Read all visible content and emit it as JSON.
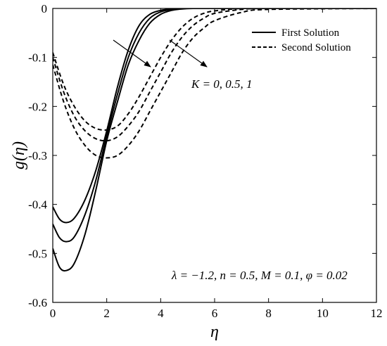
{
  "chart_data": {
    "type": "line",
    "xlabel": "η",
    "ylabel": "g(η)",
    "xlim": [
      0,
      12
    ],
    "ylim": [
      -0.6,
      0
    ],
    "xticks": [
      0,
      2,
      4,
      6,
      8,
      10,
      12
    ],
    "xtick_labels": [
      "0",
      "2",
      "4",
      "6",
      "8",
      "10",
      "12"
    ],
    "yticks": [
      0,
      -0.1,
      -0.2,
      -0.3,
      -0.4,
      -0.5,
      -0.6
    ],
    "ytick_labels": [
      "0",
      "-0.1",
      "-0.2",
      "-0.3",
      "-0.4",
      "-0.5",
      "-0.6"
    ],
    "grid": false,
    "legend_position": "top-right",
    "legend": [
      {
        "label": "First Solution",
        "style": "solid"
      },
      {
        "label": "Second Solution",
        "style": "dashed"
      }
    ],
    "annotations": {
      "param_label": "K = 0, 0.5, 1",
      "conditions": "λ = −1.2, n = 0.5, M = 0.1, φ = 0.02"
    },
    "series": [
      {
        "solution": "First Solution",
        "K": 0,
        "style": "solid",
        "x": [
          0,
          0.25,
          0.5,
          0.8,
          1.2,
          1.6,
          2.0,
          2.4,
          2.8,
          3.2,
          3.6,
          4.0,
          4.4,
          4.8,
          5.2,
          6,
          8,
          12
        ],
        "y": [
          -0.405,
          -0.43,
          -0.437,
          -0.428,
          -0.39,
          -0.33,
          -0.25,
          -0.16,
          -0.085,
          -0.035,
          -0.012,
          -0.004,
          -0.001,
          0,
          0,
          0,
          0,
          0
        ]
      },
      {
        "solution": "First Solution",
        "K": 0.5,
        "style": "solid",
        "x": [
          0,
          0.25,
          0.5,
          0.8,
          1.2,
          1.6,
          2.0,
          2.4,
          2.8,
          3.2,
          3.6,
          4.0,
          4.4,
          4.8,
          5.2,
          6,
          8,
          12
        ],
        "y": [
          -0.44,
          -0.468,
          -0.476,
          -0.466,
          -0.42,
          -0.35,
          -0.26,
          -0.175,
          -0.1,
          -0.05,
          -0.02,
          -0.007,
          -0.002,
          0,
          0,
          0,
          0,
          0
        ]
      },
      {
        "solution": "First Solution",
        "K": 1,
        "style": "solid",
        "x": [
          0,
          0.25,
          0.5,
          0.8,
          1.2,
          1.6,
          2.0,
          2.4,
          2.8,
          3.2,
          3.6,
          4.0,
          4.4,
          4.8,
          5.2,
          6,
          8,
          12
        ],
        "y": [
          -0.49,
          -0.528,
          -0.535,
          -0.52,
          -0.46,
          -0.37,
          -0.27,
          -0.19,
          -0.115,
          -0.065,
          -0.03,
          -0.012,
          -0.004,
          -0.001,
          0,
          0,
          0,
          0
        ]
      },
      {
        "solution": "Second Solution",
        "K": 0,
        "style": "dashed",
        "x": [
          0,
          0.4,
          0.8,
          1.2,
          1.6,
          2.0,
          2.4,
          2.8,
          3.2,
          3.6,
          4.0,
          4.4,
          4.8,
          5.2,
          5.6,
          6,
          7,
          8,
          12
        ],
        "y": [
          -0.09,
          -0.155,
          -0.2,
          -0.23,
          -0.245,
          -0.248,
          -0.24,
          -0.215,
          -0.18,
          -0.14,
          -0.1,
          -0.065,
          -0.038,
          -0.02,
          -0.01,
          -0.005,
          0,
          0,
          0
        ]
      },
      {
        "solution": "Second Solution",
        "K": 0.5,
        "style": "dashed",
        "x": [
          0,
          0.4,
          0.8,
          1.2,
          1.6,
          2.0,
          2.4,
          2.8,
          3.2,
          3.6,
          4.0,
          4.4,
          4.8,
          5.2,
          5.6,
          6,
          7,
          8,
          12
        ],
        "y": [
          -0.1,
          -0.17,
          -0.22,
          -0.25,
          -0.266,
          -0.27,
          -0.262,
          -0.24,
          -0.21,
          -0.17,
          -0.13,
          -0.09,
          -0.058,
          -0.035,
          -0.02,
          -0.01,
          -0.002,
          0,
          0
        ]
      },
      {
        "solution": "Second Solution",
        "K": 1,
        "style": "dashed",
        "x": [
          0,
          0.4,
          0.8,
          1.2,
          1.6,
          2.0,
          2.4,
          2.8,
          3.2,
          3.6,
          4.0,
          4.4,
          4.8,
          5.2,
          5.6,
          6,
          7,
          8,
          12
        ],
        "y": [
          -0.115,
          -0.19,
          -0.245,
          -0.28,
          -0.3,
          -0.305,
          -0.3,
          -0.28,
          -0.25,
          -0.21,
          -0.17,
          -0.13,
          -0.09,
          -0.06,
          -0.04,
          -0.025,
          -0.008,
          -0.002,
          0
        ]
      }
    ]
  }
}
